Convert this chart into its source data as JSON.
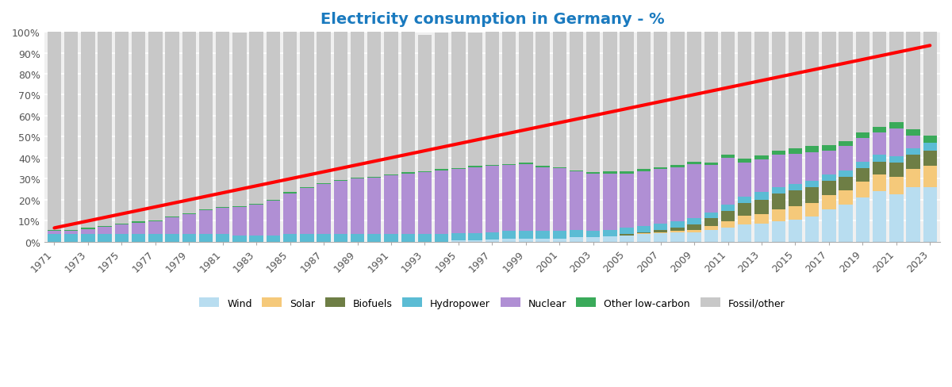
{
  "title": "Electricity consumption in Germany - %",
  "title_color": "#1a7abf",
  "years": [
    1971,
    1972,
    1973,
    1974,
    1975,
    1976,
    1977,
    1978,
    1979,
    1980,
    1981,
    1982,
    1983,
    1984,
    1985,
    1986,
    1987,
    1988,
    1989,
    1990,
    1991,
    1992,
    1993,
    1994,
    1995,
    1996,
    1997,
    1998,
    1999,
    2000,
    2001,
    2002,
    2003,
    2004,
    2005,
    2006,
    2007,
    2008,
    2009,
    2010,
    2011,
    2012,
    2013,
    2014,
    2015,
    2016,
    2017,
    2018,
    2019,
    2020,
    2021,
    2022,
    2023
  ],
  "wind": [
    0.0,
    0.0,
    0.0,
    0.0,
    0.0,
    0.0,
    0.0,
    0.0,
    0.0,
    0.0,
    0.0,
    0.0,
    0.0,
    0.0,
    0.0,
    0.0,
    0.0,
    0.0,
    0.0,
    0.0,
    0.0,
    0.0,
    0.0,
    0.0,
    0.5,
    0.5,
    1.0,
    1.5,
    1.5,
    1.5,
    1.5,
    2.0,
    2.0,
    2.5,
    3.0,
    3.5,
    4.0,
    4.5,
    4.5,
    5.5,
    6.5,
    8.0,
    8.5,
    9.5,
    10.5,
    12.0,
    15.5,
    17.5,
    21.0,
    24.0,
    22.5,
    26.0,
    26.0
  ],
  "solar": [
    0.0,
    0.0,
    0.0,
    0.0,
    0.0,
    0.0,
    0.0,
    0.0,
    0.0,
    0.0,
    0.0,
    0.0,
    0.0,
    0.0,
    0.0,
    0.0,
    0.0,
    0.0,
    0.0,
    0.0,
    0.0,
    0.0,
    0.0,
    0.0,
    0.0,
    0.0,
    0.0,
    0.0,
    0.0,
    0.0,
    0.0,
    0.0,
    0.0,
    0.0,
    0.0,
    0.5,
    0.5,
    0.5,
    1.0,
    2.0,
    3.0,
    4.5,
    4.5,
    6.0,
    6.5,
    6.5,
    6.5,
    7.0,
    7.5,
    8.0,
    8.5,
    8.5,
    10.0
  ],
  "biofuels": [
    0.0,
    0.0,
    0.0,
    0.0,
    0.0,
    0.0,
    0.0,
    0.0,
    0.0,
    0.0,
    0.0,
    0.0,
    0.0,
    0.0,
    0.0,
    0.0,
    0.0,
    0.0,
    0.0,
    0.0,
    0.0,
    0.0,
    0.0,
    0.0,
    0.0,
    0.0,
    0.0,
    0.0,
    0.0,
    0.0,
    0.0,
    0.0,
    0.0,
    0.0,
    0.5,
    0.5,
    1.0,
    1.5,
    2.5,
    3.5,
    5.0,
    6.0,
    7.0,
    7.5,
    7.5,
    7.5,
    7.0,
    6.5,
    6.5,
    6.0,
    6.5,
    7.0,
    7.5
  ],
  "hydro": [
    3.5,
    3.5,
    3.5,
    3.5,
    3.5,
    3.5,
    3.5,
    3.5,
    3.5,
    3.5,
    3.5,
    3.0,
    3.0,
    3.0,
    3.5,
    3.5,
    3.5,
    3.5,
    3.5,
    3.5,
    3.5,
    3.5,
    3.5,
    3.5,
    3.5,
    3.5,
    3.5,
    3.5,
    3.5,
    3.5,
    3.5,
    3.5,
    3.0,
    3.0,
    3.0,
    3.0,
    3.0,
    3.0,
    3.0,
    3.0,
    3.0,
    3.0,
    3.5,
    3.0,
    3.0,
    3.0,
    3.0,
    3.0,
    3.0,
    3.5,
    3.0,
    3.0,
    3.5
  ],
  "nuclear": [
    1.5,
    1.5,
    2.5,
    3.5,
    4.5,
    5.5,
    6.0,
    8.0,
    9.5,
    11.5,
    12.5,
    13.5,
    14.5,
    16.5,
    19.5,
    22.0,
    24.0,
    25.5,
    26.5,
    27.0,
    28.0,
    29.0,
    29.5,
    30.5,
    30.5,
    31.5,
    31.5,
    31.5,
    32.0,
    30.5,
    30.0,
    28.0,
    27.5,
    27.0,
    26.0,
    26.0,
    26.0,
    26.0,
    26.0,
    22.5,
    22.5,
    16.0,
    15.5,
    15.5,
    14.5,
    13.5,
    11.5,
    11.5,
    11.5,
    10.5,
    13.5,
    6.0,
    0.0
  ],
  "other_lowcarbon": [
    0.5,
    0.5,
    0.5,
    0.5,
    0.5,
    0.5,
    0.5,
    0.5,
    0.5,
    0.5,
    0.5,
    0.5,
    0.5,
    0.5,
    0.5,
    0.5,
    0.5,
    0.5,
    0.5,
    0.5,
    0.5,
    0.5,
    0.5,
    0.5,
    0.5,
    0.5,
    0.5,
    0.5,
    0.5,
    0.5,
    0.5,
    0.5,
    0.5,
    1.0,
    1.0,
    1.0,
    1.0,
    1.0,
    1.0,
    1.0,
    1.5,
    2.0,
    2.0,
    2.0,
    2.5,
    3.0,
    2.5,
    2.5,
    2.5,
    2.5,
    3.0,
    3.0,
    3.5
  ],
  "fossil_other": [
    94.5,
    94.5,
    93.5,
    92.5,
    91.5,
    90.5,
    90.0,
    88.0,
    86.5,
    84.5,
    83.5,
    82.5,
    82.0,
    80.0,
    77.0,
    74.0,
    72.0,
    70.5,
    69.5,
    69.0,
    68.0,
    67.0,
    65.0,
    65.0,
    65.0,
    63.5,
    63.5,
    63.0,
    62.5,
    64.0,
    64.5,
    66.0,
    67.0,
    66.5,
    66.5,
    65.5,
    64.5,
    63.5,
    62.0,
    62.5,
    58.5,
    60.5,
    59.0,
    56.5,
    55.5,
    54.5,
    54.0,
    52.0,
    48.0,
    45.5,
    43.0,
    46.5,
    49.5
  ],
  "red_line_x": [
    1971,
    2023
  ],
  "red_line_y": [
    6.5,
    93.5
  ],
  "colors": {
    "wind": "#b8ddf0",
    "solar": "#f5c97a",
    "biofuels": "#6e7e45",
    "hydro": "#5bbcd4",
    "nuclear": "#b08fd4",
    "other_lowcarbon": "#3aaa5a",
    "fossil_other": "#c8c8c8"
  },
  "background_color": "#f0f0f0",
  "ylim": [
    0,
    100
  ]
}
